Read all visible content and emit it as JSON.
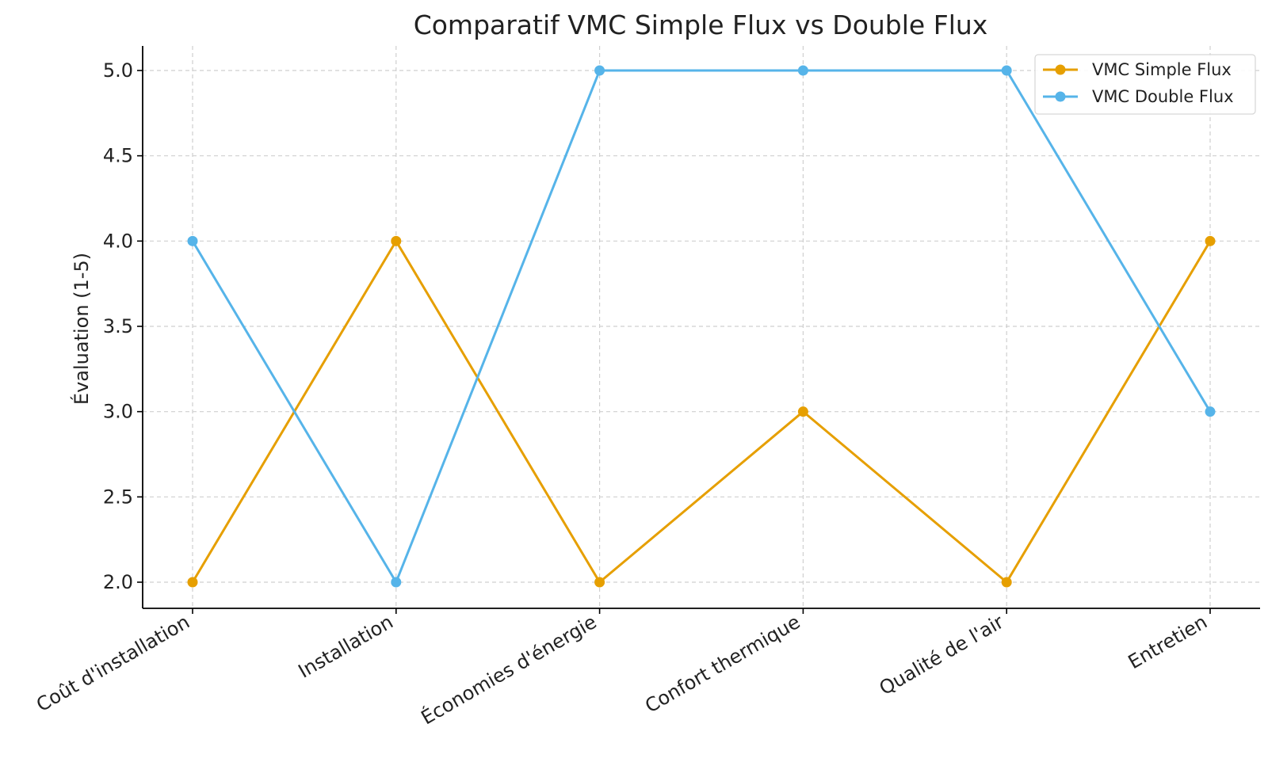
{
  "chart_data": {
    "type": "line",
    "title": "Comparatif VMC Simple Flux vs Double Flux",
    "xlabel": "",
    "ylabel": "Évaluation (1-5)",
    "categories": [
      "Coût d'installation",
      "Installation",
      "Économies d'énergie",
      "Confort thermique",
      "Qualité de l'air",
      "Entretien"
    ],
    "ylim": [
      1.85,
      5.15
    ],
    "yticks": [
      2.0,
      2.5,
      3.0,
      3.5,
      4.0,
      4.5,
      5.0
    ],
    "ytick_labels": [
      "2.0",
      "2.5",
      "3.0",
      "3.5",
      "4.0",
      "4.5",
      "5.0"
    ],
    "grid": true,
    "legend_position": "top-right",
    "series": [
      {
        "name": "VMC Simple Flux",
        "color": "#E69F00",
        "values": [
          2,
          4,
          2,
          3,
          2,
          4
        ]
      },
      {
        "name": "VMC Double Flux",
        "color": "#56B4E9",
        "values": [
          4,
          2,
          5,
          5,
          5,
          3
        ]
      }
    ]
  }
}
